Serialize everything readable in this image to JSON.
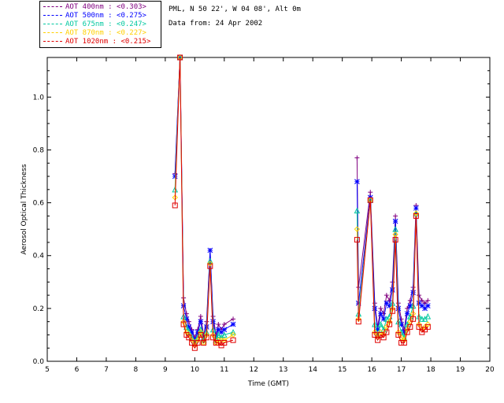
{
  "header": {
    "location": "PML, N 50 22', W 04 08', Alt 0m",
    "date": "Data from: 24 Apr 2002"
  },
  "chart_data": {
    "type": "line",
    "title": "",
    "xlabel": "Time (GMT)",
    "ylabel": "Aerosol Optical Thickness",
    "xlim": [
      5,
      20
    ],
    "ylim": [
      0,
      1.15
    ],
    "xticks": [
      "5",
      "6",
      "7",
      "8",
      "9",
      "10",
      "11",
      "12",
      "13",
      "14",
      "15",
      "16",
      "17",
      "18",
      "19",
      "20"
    ],
    "yticks": [
      "0.0",
      "0.2",
      "0.4",
      "0.6",
      "0.8",
      "1.0"
    ],
    "series": [
      {
        "name": "AOT  400nm : <0.303>",
        "color": "#800080",
        "marker": "plus",
        "segments": [
          [
            [
              9.33,
              0.71
            ],
            [
              9.5,
              1.15
            ],
            [
              9.62,
              0.24
            ],
            [
              9.72,
              0.18
            ],
            [
              9.8,
              0.15
            ],
            [
              9.9,
              0.12
            ],
            [
              10.0,
              0.09
            ],
            [
              10.1,
              0.12
            ],
            [
              10.2,
              0.17
            ],
            [
              10.3,
              0.1
            ],
            [
              10.4,
              0.15
            ],
            [
              10.52,
              0.42
            ],
            [
              10.62,
              0.17
            ],
            [
              10.72,
              0.1
            ],
            [
              10.8,
              0.14
            ],
            [
              10.9,
              0.12
            ],
            [
              11.0,
              0.14
            ],
            [
              11.3,
              0.16
            ]
          ],
          [
            [
              15.5,
              0.77
            ],
            [
              15.55,
              0.28
            ],
            [
              15.95,
              0.64
            ],
            [
              16.1,
              0.22
            ],
            [
              16.2,
              0.13
            ],
            [
              16.3,
              0.2
            ],
            [
              16.4,
              0.18
            ],
            [
              16.5,
              0.25
            ],
            [
              16.6,
              0.23
            ],
            [
              16.7,
              0.3
            ],
            [
              16.8,
              0.55
            ],
            [
              16.9,
              0.22
            ],
            [
              17.0,
              0.16
            ],
            [
              17.1,
              0.12
            ],
            [
              17.2,
              0.2
            ],
            [
              17.3,
              0.23
            ],
            [
              17.4,
              0.28
            ],
            [
              17.5,
              0.59
            ],
            [
              17.6,
              0.25
            ],
            [
              17.7,
              0.23
            ],
            [
              17.8,
              0.22
            ],
            [
              17.9,
              0.23
            ]
          ]
        ]
      },
      {
        "name": "AOT  500nm : <0.275>",
        "color": "#0000ff",
        "marker": "star",
        "segments": [
          [
            [
              9.33,
              0.7
            ],
            [
              9.5,
              1.15
            ],
            [
              9.62,
              0.21
            ],
            [
              9.72,
              0.16
            ],
            [
              9.8,
              0.13
            ],
            [
              9.9,
              0.11
            ],
            [
              10.0,
              0.08
            ],
            [
              10.1,
              0.11
            ],
            [
              10.2,
              0.15
            ],
            [
              10.3,
              0.09
            ],
            [
              10.4,
              0.13
            ],
            [
              10.52,
              0.42
            ],
            [
              10.62,
              0.15
            ],
            [
              10.72,
              0.09
            ],
            [
              10.8,
              0.12
            ],
            [
              10.9,
              0.11
            ],
            [
              11.0,
              0.12
            ],
            [
              11.3,
              0.14
            ]
          ],
          [
            [
              15.5,
              0.68
            ],
            [
              15.55,
              0.22
            ],
            [
              15.95,
              0.62
            ],
            [
              16.1,
              0.2
            ],
            [
              16.2,
              0.12
            ],
            [
              16.3,
              0.18
            ],
            [
              16.4,
              0.16
            ],
            [
              16.5,
              0.22
            ],
            [
              16.6,
              0.21
            ],
            [
              16.7,
              0.27
            ],
            [
              16.8,
              0.53
            ],
            [
              16.9,
              0.2
            ],
            [
              17.0,
              0.14
            ],
            [
              17.1,
              0.11
            ],
            [
              17.2,
              0.18
            ],
            [
              17.3,
              0.21
            ],
            [
              17.4,
              0.26
            ],
            [
              17.5,
              0.58
            ],
            [
              17.6,
              0.22
            ],
            [
              17.7,
              0.21
            ],
            [
              17.8,
              0.2
            ],
            [
              17.9,
              0.21
            ]
          ]
        ]
      },
      {
        "name": "AOT  675nm : <0.247>",
        "color": "#00c8a0",
        "marker": "triangle",
        "segments": [
          [
            [
              9.33,
              0.65
            ],
            [
              9.5,
              1.15
            ],
            [
              9.62,
              0.17
            ],
            [
              9.72,
              0.13
            ],
            [
              9.8,
              0.11
            ],
            [
              9.9,
              0.09
            ],
            [
              10.0,
              0.07
            ],
            [
              10.1,
              0.09
            ],
            [
              10.2,
              0.12
            ],
            [
              10.3,
              0.08
            ],
            [
              10.4,
              0.11
            ],
            [
              10.52,
              0.38
            ],
            [
              10.62,
              0.12
            ],
            [
              10.72,
              0.08
            ],
            [
              10.8,
              0.1
            ],
            [
              10.9,
              0.09
            ],
            [
              11.0,
              0.1
            ],
            [
              11.3,
              0.11
            ]
          ],
          [
            [
              15.5,
              0.57
            ],
            [
              15.55,
              0.18
            ],
            [
              15.95,
              0.61
            ],
            [
              16.1,
              0.14
            ],
            [
              16.2,
              0.1
            ],
            [
              16.3,
              0.14
            ],
            [
              16.4,
              0.12
            ],
            [
              16.5,
              0.16
            ],
            [
              16.6,
              0.17
            ],
            [
              16.7,
              0.22
            ],
            [
              16.8,
              0.5
            ],
            [
              16.9,
              0.15
            ],
            [
              17.0,
              0.11
            ],
            [
              17.1,
              0.09
            ],
            [
              17.2,
              0.14
            ],
            [
              17.3,
              0.17
            ],
            [
              17.4,
              0.21
            ],
            [
              17.5,
              0.56
            ],
            [
              17.6,
              0.17
            ],
            [
              17.7,
              0.16
            ],
            [
              17.8,
              0.16
            ],
            [
              17.9,
              0.17
            ]
          ]
        ]
      },
      {
        "name": "AOT  870nm : <0.227>",
        "color": "#ffd000",
        "marker": "diamond",
        "segments": [
          [
            [
              9.33,
              0.62
            ],
            [
              9.5,
              1.15
            ],
            [
              9.62,
              0.15
            ],
            [
              9.72,
              0.11
            ],
            [
              9.8,
              0.1
            ],
            [
              9.9,
              0.08
            ],
            [
              10.0,
              0.06
            ],
            [
              10.1,
              0.08
            ],
            [
              10.2,
              0.11
            ],
            [
              10.3,
              0.07
            ],
            [
              10.4,
              0.1
            ],
            [
              10.52,
              0.37
            ],
            [
              10.62,
              0.1
            ],
            [
              10.72,
              0.07
            ],
            [
              10.8,
              0.08
            ],
            [
              10.9,
              0.08
            ],
            [
              11.0,
              0.08
            ],
            [
              11.3,
              0.1
            ]
          ],
          [
            [
              15.5,
              0.5
            ],
            [
              15.55,
              0.16
            ],
            [
              15.95,
              0.61
            ],
            [
              16.1,
              0.11
            ],
            [
              16.2,
              0.09
            ],
            [
              16.3,
              0.11
            ],
            [
              16.4,
              0.1
            ],
            [
              16.5,
              0.13
            ],
            [
              16.6,
              0.15
            ],
            [
              16.7,
              0.2
            ],
            [
              16.8,
              0.48
            ],
            [
              16.9,
              0.11
            ],
            [
              17.0,
              0.09
            ],
            [
              17.1,
              0.08
            ],
            [
              17.2,
              0.12
            ],
            [
              17.3,
              0.15
            ],
            [
              17.4,
              0.18
            ],
            [
              17.5,
              0.56
            ],
            [
              17.6,
              0.14
            ],
            [
              17.7,
              0.12
            ],
            [
              17.8,
              0.13
            ],
            [
              17.9,
              0.14
            ]
          ]
        ]
      },
      {
        "name": "AOT 1020nm : <0.215>",
        "color": "#e00000",
        "marker": "square",
        "segments": [
          [
            [
              9.33,
              0.59
            ],
            [
              9.5,
              1.15
            ],
            [
              9.62,
              0.14
            ],
            [
              9.72,
              0.1
            ],
            [
              9.8,
              0.09
            ],
            [
              9.9,
              0.07
            ],
            [
              10.0,
              0.05
            ],
            [
              10.1,
              0.07
            ],
            [
              10.2,
              0.1
            ],
            [
              10.3,
              0.07
            ],
            [
              10.4,
              0.09
            ],
            [
              10.52,
              0.36
            ],
            [
              10.62,
              0.09
            ],
            [
              10.72,
              0.07
            ],
            [
              10.8,
              0.07
            ],
            [
              10.9,
              0.06
            ],
            [
              11.0,
              0.07
            ],
            [
              11.3,
              0.08
            ]
          ],
          [
            [
              15.5,
              0.46
            ],
            [
              15.55,
              0.15
            ],
            [
              15.95,
              0.61
            ],
            [
              16.1,
              0.1
            ],
            [
              16.2,
              0.08
            ],
            [
              16.3,
              0.1
            ],
            [
              16.4,
              0.09
            ],
            [
              16.5,
              0.11
            ],
            [
              16.6,
              0.14
            ],
            [
              16.7,
              0.19
            ],
            [
              16.8,
              0.46
            ],
            [
              16.9,
              0.1
            ],
            [
              17.0,
              0.07
            ],
            [
              17.1,
              0.07
            ],
            [
              17.2,
              0.11
            ],
            [
              17.3,
              0.13
            ],
            [
              17.4,
              0.16
            ],
            [
              17.5,
              0.55
            ],
            [
              17.6,
              0.13
            ],
            [
              17.7,
              0.11
            ],
            [
              17.8,
              0.12
            ],
            [
              17.9,
              0.13
            ]
          ]
        ]
      }
    ]
  }
}
